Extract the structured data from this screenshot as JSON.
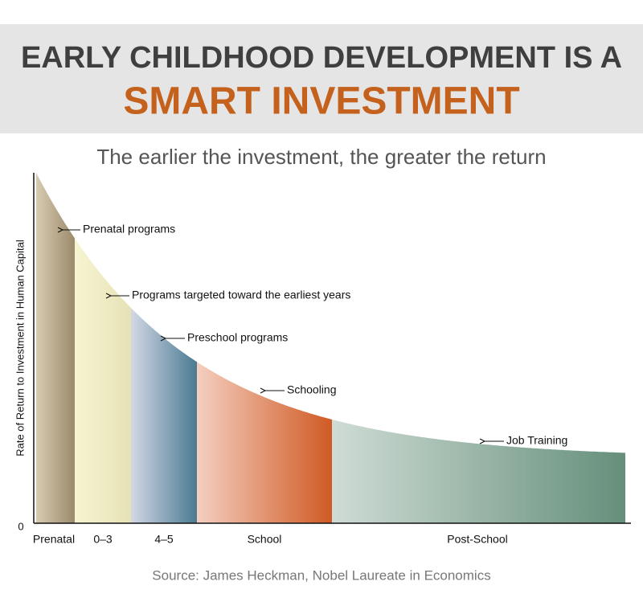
{
  "header": {
    "title_line1": "EARLY CHILDHOOD DEVELOPMENT IS A",
    "title_line2": "SMART INVESTMENT"
  },
  "subtitle": "The earlier the investment, the greater the return",
  "y_axis_label": "Rate of Return to Investment in Human Capital",
  "y_origin_label": "0",
  "stages": [
    "Prenatal",
    "0–3",
    "4–5",
    "School",
    "Post-School"
  ],
  "annotations": [
    "Prenatal programs",
    "Programs targeted toward the earliest years",
    "Preschool programs",
    "Schooling",
    "Job Training"
  ],
  "source": "Source: James Heckman, Nobel Laureate in Economics"
}
